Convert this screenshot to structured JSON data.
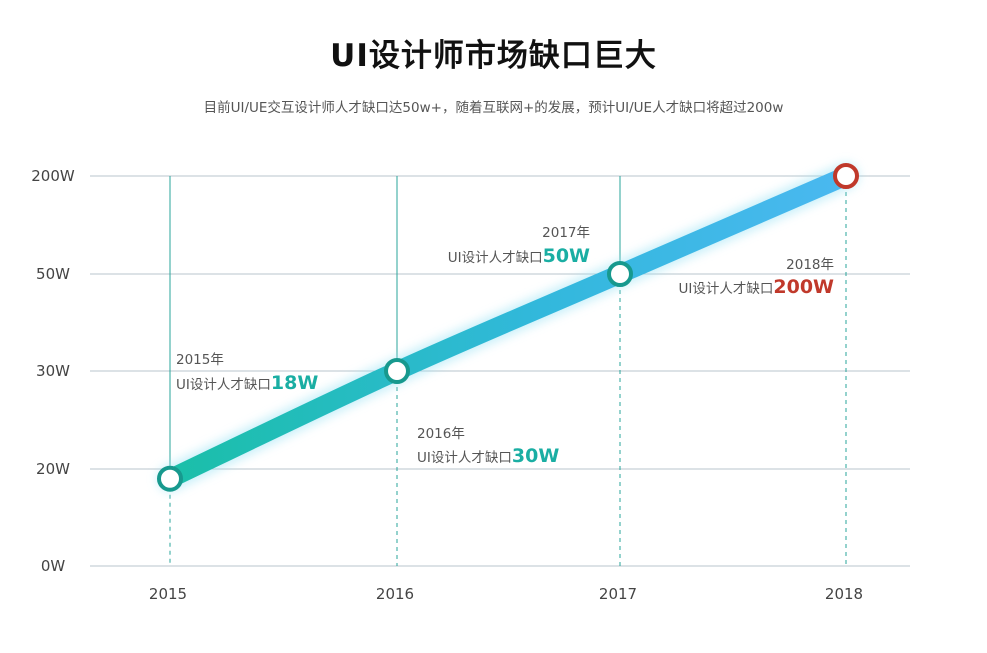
{
  "page": {
    "title": "UI设计师市场缺口巨大",
    "subtitle": "目前UI/UE交互设计师人才缺口达50w+，随着互联网+的发展，预计UI/UE人才缺口将超过200w"
  },
  "colors": {
    "teal": "#1aaea3",
    "blue": "#4ab8f0",
    "red": "#c0392b",
    "grid": "#b8c4cc",
    "vline": "#2aa49b"
  },
  "chart_data": {
    "type": "line",
    "title": "",
    "x": [
      "2015",
      "2016",
      "2017",
      "2018"
    ],
    "y_ticks": [
      "0W",
      "20W",
      "30W",
      "50W",
      "200W"
    ],
    "y_scale": "categorical (non-linear)",
    "series": [
      {
        "values": [
          18,
          30,
          50,
          200
        ]
      }
    ],
    "annotations": [
      {
        "year": "2015年",
        "text": "UI设计人才缺口",
        "value": "18W",
        "color": "#1aaea3"
      },
      {
        "year": "2016年",
        "text": "UI设计人才缺口",
        "value": "30W",
        "color": "#1aaea3"
      },
      {
        "year": "2017年",
        "text": "UI设计人才缺口",
        "value": "50W",
        "color": "#1aaea3"
      },
      {
        "year": "2018年",
        "text": "UI设计人才缺口",
        "value": "200W",
        "color": "#c0392b"
      }
    ],
    "grid": true
  }
}
